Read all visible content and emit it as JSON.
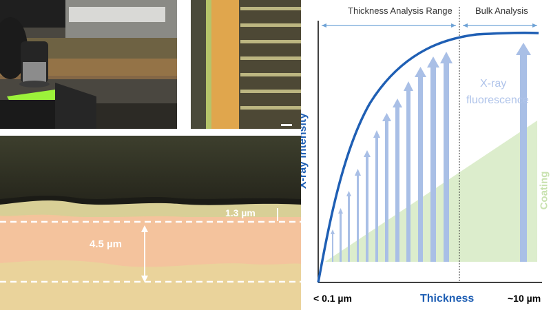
{
  "micrograph": {
    "measure_thin": "1.3 µm",
    "measure_thick": "4.5 µm"
  },
  "chart": {
    "range_left_label": "Thickness Analysis Range",
    "range_right_label": "Bulk Analysis",
    "y_axis_label": "X-ray Intensity",
    "x_axis_label": "Thickness",
    "x_min_label": "< 0.1 µm",
    "x_max_label": "~10 µm",
    "fluorescence_label_line1": "X-ray",
    "fluorescence_label_line2": "fluorescence",
    "coating_label": "Coating",
    "colors": {
      "curve": "#1f5fb4",
      "axis_text": "#1f5fb4",
      "arrows": "#a9bfe6",
      "coating_fill": "#dcedcc",
      "coating_text": "#c9e2b0",
      "range_arrow": "#6fa3d6"
    }
  }
}
